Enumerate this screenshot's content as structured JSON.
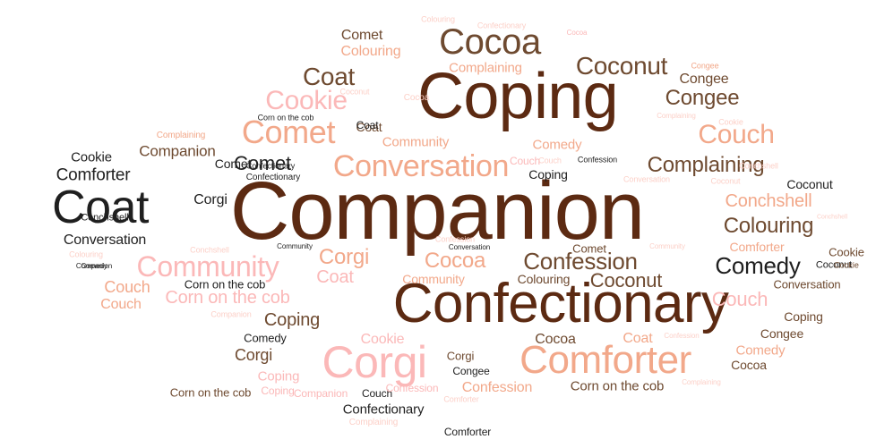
{
  "palette": {
    "background": "#ffffff",
    "dark_brown": "#5c2a12",
    "brown": "#6e4a30",
    "black": "#1f1f1f",
    "salmon": "#f2a88a",
    "pink": "#fbb8b8",
    "light_pink": "#fcd0c8"
  },
  "words": [
    {
      "text": "Companion",
      "size": 4,
      "color": "dark_brown"
    },
    {
      "text": "Coping",
      "size": 3,
      "color": "dark_brown"
    },
    {
      "text": "Confectionary",
      "size": 3,
      "color": "dark_brown"
    },
    {
      "text": "Coat",
      "size": 2,
      "color": "black"
    },
    {
      "text": "Corgi",
      "size": 2,
      "color": "pink"
    },
    {
      "text": "Comforter",
      "size": 2,
      "color": "salmon"
    },
    {
      "text": "Cocoa",
      "size": 2,
      "color": "brown"
    },
    {
      "text": "Comet",
      "size": 2,
      "color": "salmon"
    },
    {
      "text": "Conversation",
      "size": 2,
      "color": "salmon"
    },
    {
      "text": "Community",
      "size": 2,
      "color": "pink"
    },
    {
      "text": "Cookie",
      "size": 2,
      "color": "pink"
    },
    {
      "text": "Couch",
      "size": 2,
      "color": "salmon"
    },
    {
      "text": "Coconut",
      "size": 2,
      "color": "brown"
    },
    {
      "text": "Coat",
      "size": 2,
      "color": "brown"
    },
    {
      "text": "Comedy",
      "size": 2,
      "color": "black"
    },
    {
      "text": "Confession",
      "size": 2,
      "color": "brown"
    },
    {
      "text": "Complaining",
      "size": 2,
      "color": "brown"
    },
    {
      "text": "Colouring",
      "size": 2,
      "color": "brown"
    },
    {
      "text": "Congee",
      "size": 2,
      "color": "brown"
    },
    {
      "text": "Conchshell",
      "size": 2,
      "color": "salmon"
    },
    {
      "text": "Couch",
      "size": 2,
      "color": "salmon"
    },
    {
      "text": "Cocoa",
      "size": 2,
      "color": "salmon"
    },
    {
      "text": "Corgi",
      "size": 2,
      "color": "salmon"
    },
    {
      "text": "Corn on the cob",
      "size": 2,
      "color": "pink"
    },
    {
      "text": "Comforter",
      "size": 1,
      "color": "black"
    },
    {
      "text": "Cookie",
      "size": 1,
      "color": "black"
    },
    {
      "text": "Companion",
      "size": 1,
      "color": "brown"
    },
    {
      "text": "Comet",
      "size": 1,
      "color": "black"
    },
    {
      "text": "Conversation",
      "size": 1,
      "color": "black"
    },
    {
      "text": "Comet",
      "size": 1,
      "color": "brown"
    },
    {
      "text": "Colouring",
      "size": 1,
      "color": "salmon"
    },
    {
      "text": "Complaining",
      "size": 1,
      "color": "salmon"
    },
    {
      "text": "Congee",
      "size": 1,
      "color": "brown"
    },
    {
      "text": "Community",
      "size": 1,
      "color": "salmon"
    },
    {
      "text": "Comedy",
      "size": 1,
      "color": "salmon"
    },
    {
      "text": "Corgi",
      "size": 1,
      "color": "black"
    },
    {
      "text": "Coping",
      "size": 1,
      "color": "brown"
    },
    {
      "text": "Coat",
      "size": 1,
      "color": "pink"
    },
    {
      "text": "Cookie",
      "size": 1,
      "color": "pink"
    },
    {
      "text": "Couch",
      "size": 1,
      "color": "salmon"
    },
    {
      "text": "Coping",
      "size": 1,
      "color": "pink"
    },
    {
      "text": "Corgi",
      "size": 1,
      "color": "brown"
    },
    {
      "text": "Cocoa",
      "size": 1,
      "color": "brown"
    },
    {
      "text": "Coat",
      "size": 1,
      "color": "salmon"
    },
    {
      "text": "Confession",
      "size": 1,
      "color": "salmon"
    },
    {
      "text": "Corn on the cob",
      "size": 1,
      "color": "brown"
    },
    {
      "text": "Confectionary",
      "size": 1,
      "color": "black"
    },
    {
      "text": "Coconut",
      "size": 1,
      "color": "brown"
    },
    {
      "text": "Colouring",
      "size": 1,
      "color": "brown"
    },
    {
      "text": "Community",
      "size": 1,
      "color": "salmon"
    },
    {
      "text": "Coat",
      "size": 1,
      "color": "brown"
    },
    {
      "text": "Coping",
      "size": 1,
      "color": "black"
    },
    {
      "text": "Comet",
      "size": 1,
      "color": "black"
    },
    {
      "text": "Coconut",
      "size": 1,
      "color": "black"
    },
    {
      "text": "Cookie",
      "size": 1,
      "color": "brown"
    },
    {
      "text": "Conversation",
      "size": 1,
      "color": "brown"
    },
    {
      "text": "Couch",
      "size": 1,
      "color": "pink"
    },
    {
      "text": "Coping",
      "size": 1,
      "color": "brown"
    },
    {
      "text": "Congee",
      "size": 1,
      "color": "brown"
    },
    {
      "text": "Comedy",
      "size": 1,
      "color": "salmon"
    },
    {
      "text": "Cocoa",
      "size": 1,
      "color": "brown"
    },
    {
      "text": "Comforter",
      "size": 1,
      "color": "salmon"
    },
    {
      "text": "Comet",
      "size": 1,
      "color": "brown"
    },
    {
      "text": "Corn on the cob",
      "size": 1,
      "color": "black"
    },
    {
      "text": "Couch",
      "size": 1,
      "color": "pink"
    },
    {
      "text": "Comedy",
      "size": 1,
      "color": "black"
    },
    {
      "text": "Corgi",
      "size": 1,
      "color": "brown"
    },
    {
      "text": "Congee",
      "size": 1,
      "color": "black"
    },
    {
      "text": "Coping",
      "size": 1,
      "color": "pink"
    },
    {
      "text": "Companion",
      "size": 1,
      "color": "pink"
    },
    {
      "text": "Couch",
      "size": 1,
      "color": "black"
    },
    {
      "text": "Confession",
      "size": 1,
      "color": "pink"
    },
    {
      "text": "Corn on the cob",
      "size": 1,
      "color": "brown"
    },
    {
      "text": "Confectionary",
      "size": 1,
      "color": "black"
    },
    {
      "text": "Comforter",
      "size": 0,
      "color": "black"
    },
    {
      "text": "Coat",
      "size": 1,
      "color": "black"
    },
    {
      "text": "Conchshell",
      "size": 1,
      "color": "black"
    },
    {
      "text": "Companion",
      "size": 0,
      "color": "black"
    },
    {
      "text": "Confectionary",
      "size": 0,
      "color": "black"
    },
    {
      "text": "Corn on the cob",
      "size": 0,
      "color": "black"
    },
    {
      "text": "Confession",
      "size": 0,
      "color": "black"
    },
    {
      "text": "Community",
      "size": 0,
      "color": "black"
    },
    {
      "text": "Conversation",
      "size": 0,
      "color": "black"
    },
    {
      "text": "Comedy",
      "size": 0,
      "color": "black"
    },
    {
      "text": "Coconut",
      "size": 0,
      "color": "light_pink"
    },
    {
      "text": "Cocoa",
      "size": 0,
      "color": "light_pink"
    },
    {
      "text": "Complaining",
      "size": 0,
      "color": "salmon"
    },
    {
      "text": "Colouring",
      "size": 0,
      "color": "light_pink"
    },
    {
      "text": "Confectionary",
      "size": 0,
      "color": "light_pink"
    },
    {
      "text": "Congee",
      "size": 0,
      "color": "salmon"
    },
    {
      "text": "Conchshell",
      "size": 0,
      "color": "light_pink"
    },
    {
      "text": "Cookie",
      "size": 0,
      "color": "light_pink"
    },
    {
      "text": "Couch",
      "size": 0,
      "color": "light_pink"
    },
    {
      "text": "Confession",
      "size": 0,
      "color": "light_pink"
    },
    {
      "text": "Conversation",
      "size": 0,
      "color": "light_pink"
    },
    {
      "text": "Coconut",
      "size": 0,
      "color": "light_pink"
    },
    {
      "text": "Conchshell",
      "size": 0,
      "color": "light_pink"
    },
    {
      "text": "Community",
      "size": 0,
      "color": "light_pink"
    },
    {
      "text": "Colouring",
      "size": 0,
      "color": "light_pink"
    },
    {
      "text": "Conchshell",
      "size": 0,
      "color": "light_pink"
    },
    {
      "text": "Companion",
      "size": 0,
      "color": "light_pink"
    },
    {
      "text": "Confession",
      "size": 0,
      "color": "light_pink"
    },
    {
      "text": "Complaining",
      "size": 0,
      "color": "light_pink"
    },
    {
      "text": "Comforter",
      "size": 0,
      "color": "light_pink"
    },
    {
      "text": "Complaining",
      "size": 0,
      "color": "light_pink"
    },
    {
      "text": "Complaining",
      "size": 0,
      "color": "light_pink"
    },
    {
      "text": "Cocoa",
      "size": 0,
      "color": "pink"
    },
    {
      "text": "Coconut",
      "size": 0,
      "color": "black"
    },
    {
      "text": "Cookie",
      "size": 0,
      "color": "brown"
    }
  ]
}
